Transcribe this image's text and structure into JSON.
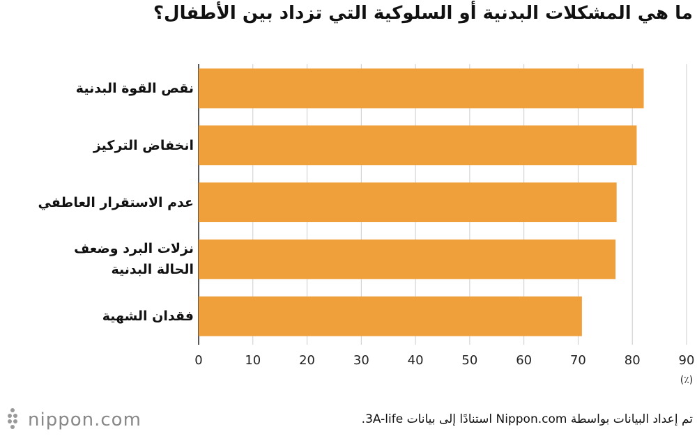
{
  "chart_data": {
    "type": "bar",
    "orientation": "horizontal",
    "title": "ما هي المشكلات البدنية أو السلوكية التي تزداد بين الأطفال؟",
    "categories": [
      "نقص القوة البدنية",
      "انخفاض التركيز",
      "عدم الاستقرار العاطفي",
      "نزلات البرد وضعف\nالحالة البدنية",
      "فقدان الشهية"
    ],
    "values": [
      82.1,
      80.8,
      77.1,
      76.9,
      70.7
    ],
    "color": "#f0a03a",
    "xlim": [
      0,
      90
    ],
    "xticks": [
      0,
      10,
      20,
      30,
      40,
      50,
      60,
      70,
      80,
      90
    ],
    "x_axis_label": "(٪)",
    "grid": true,
    "source": "تم إعداد البيانات بواسطة Nippon.com استنادًا إلى بيانات 3A-life.",
    "logo": "nippon.com"
  }
}
